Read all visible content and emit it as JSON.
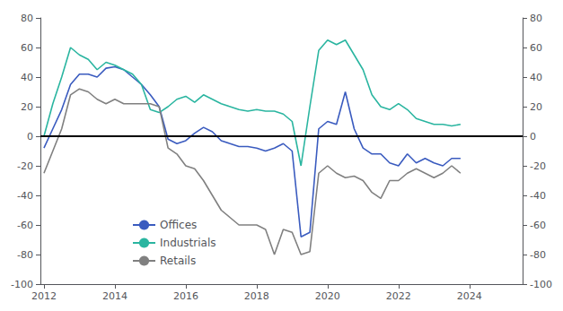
{
  "chart_data": {
    "type": "line",
    "x": [
      2012,
      2012.25,
      2012.5,
      2012.75,
      2013,
      2013.25,
      2013.5,
      2013.75,
      2014,
      2014.25,
      2014.5,
      2014.75,
      2015,
      2015.25,
      2015.5,
      2015.75,
      2016,
      2016.25,
      2016.5,
      2016.75,
      2017,
      2017.25,
      2017.5,
      2017.75,
      2018,
      2018.25,
      2018.5,
      2018.75,
      2019,
      2019.25,
      2019.5,
      2019.75,
      2020,
      2020.25,
      2020.5,
      2020.75,
      2021,
      2021.25,
      2021.5,
      2021.75,
      2022,
      2022.25,
      2022.5,
      2022.75,
      2023,
      2023.25,
      2023.5,
      2023.75
    ],
    "series": [
      {
        "name": "Offices",
        "color": "#3a5bbf",
        "values": [
          -8,
          5,
          18,
          35,
          42,
          42,
          40,
          46,
          47,
          45,
          40,
          35,
          28,
          20,
          -2,
          -5,
          -3,
          2,
          6,
          3,
          -3,
          -5,
          -7,
          -7,
          -8,
          -10,
          -8,
          -5,
          -10,
          -68,
          -65,
          5,
          10,
          8,
          30,
          5,
          -8,
          -12,
          -12,
          -18,
          -20,
          -12,
          -18,
          -15,
          -18,
          -20,
          -15,
          -15
        ]
      },
      {
        "name": "Industrials",
        "color": "#2ab5a0",
        "values": [
          0,
          22,
          40,
          60,
          55,
          52,
          45,
          50,
          48,
          45,
          42,
          35,
          18,
          16,
          20,
          25,
          27,
          23,
          28,
          25,
          22,
          20,
          18,
          17,
          18,
          17,
          17,
          15,
          10,
          -20,
          20,
          58,
          65,
          62,
          65,
          55,
          45,
          28,
          20,
          18,
          22,
          18,
          12,
          10,
          8,
          8,
          7,
          8
        ]
      },
      {
        "name": "Retails",
        "color": "#808080",
        "values": [
          -25,
          -10,
          5,
          28,
          32,
          30,
          25,
          22,
          25,
          22,
          22,
          22,
          22,
          20,
          -8,
          -12,
          -20,
          -22,
          -30,
          -40,
          -50,
          -55,
          -60,
          -60,
          -60,
          -63,
          -80,
          -63,
          -65,
          -80,
          -78,
          -25,
          -20,
          -25,
          -28,
          -27,
          -30,
          -38,
          -42,
          -30,
          -30,
          -25,
          -22,
          -25,
          -28,
          -25,
          -20,
          -25
        ]
      }
    ],
    "hlines": [
      {
        "y": 0,
        "color": "#000000"
      }
    ],
    "xlim": [
      2011.9,
      2025.5
    ],
    "xticks": [
      2012,
      2014,
      2016,
      2018,
      2020,
      2022,
      2024
    ],
    "ylim": [
      -100,
      80
    ],
    "yticks": [
      -100,
      -80,
      -60,
      -40,
      -20,
      0,
      20,
      40,
      60,
      80
    ],
    "y2lim": [
      -100,
      80
    ],
    "y2ticks": [
      -100,
      -80,
      -60,
      -40,
      -20,
      0,
      20,
      40,
      60,
      80
    ],
    "grid": false,
    "legend": "lower left"
  }
}
